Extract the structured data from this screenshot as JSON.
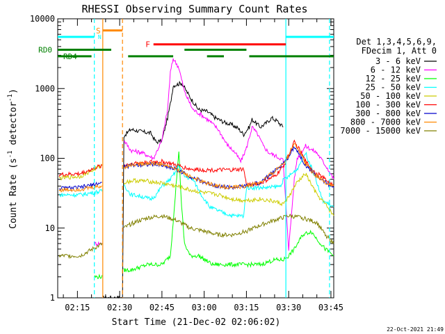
{
  "chart_data": {
    "type": "line",
    "title": "RHESSI Observing Summary Count Rates",
    "xlabel": "Start Time (21-Dec-02 02:06:02)",
    "ylabel": "Count Rate (s",
    "ylabel_exp1": "-1",
    "ylabel_mid": " detector",
    "ylabel_exp2": "-1",
    "ylabel_end": ")",
    "yscale": "log",
    "xlim": [
      8,
      106
    ],
    "ylim": [
      1,
      10000
    ],
    "x_unit": "minutes after 02:00 UT",
    "x_ticks": [
      {
        "value": 15,
        "label": "02:15"
      },
      {
        "value": 30,
        "label": "02:30"
      },
      {
        "value": 45,
        "label": "02:45"
      },
      {
        "value": 60,
        "label": "03:00"
      },
      {
        "value": 75,
        "label": "03:15"
      },
      {
        "value": 90,
        "label": "03:30"
      },
      {
        "value": 105,
        "label": "03:45"
      }
    ],
    "y_ticks": [
      {
        "value": 1,
        "label": "1"
      },
      {
        "value": 10,
        "label": "10"
      },
      {
        "value": 100,
        "label": "100"
      },
      {
        "value": 1000,
        "label": "1000"
      },
      {
        "value": 10000,
        "label": "10000"
      }
    ],
    "legend_title": [
      "Det 1,3,4,5,6,9,",
      "FDecim 1, Att 0"
    ],
    "legend_position": "right",
    "series": [
      {
        "name": "3 - 6 keV",
        "color": "#000000",
        "x": [
          8,
          20,
          24,
          31,
          31.5,
          34,
          38,
          41,
          43,
          45,
          47,
          48,
          49,
          52,
          55,
          58,
          61,
          64,
          67,
          70,
          72,
          74,
          76,
          77,
          80,
          82,
          84,
          86,
          88
        ],
        "values": [
          null,
          null,
          1,
          1,
          210,
          260,
          240,
          230,
          170,
          180,
          380,
          600,
          1100,
          1200,
          750,
          500,
          470,
          380,
          330,
          300,
          270,
          220,
          280,
          360,
          280,
          320,
          380,
          340,
          280
        ]
      },
      {
        "name": "6 - 12 keV",
        "color": "#ff00ff",
        "x": [
          8,
          20,
          21,
          24,
          31,
          31.5,
          34,
          38,
          42,
          45,
          47,
          48,
          49,
          51,
          53,
          56,
          59,
          62,
          65,
          68,
          71,
          73,
          75,
          77,
          79,
          81,
          83,
          85,
          87,
          88,
          90,
          92,
          93,
          96,
          100,
          104,
          106
        ],
        "values": [
          null,
          null,
          6,
          6,
          null,
          180,
          130,
          120,
          100,
          180,
          500,
          1700,
          2700,
          2000,
          900,
          500,
          420,
          340,
          260,
          160,
          120,
          90,
          140,
          280,
          220,
          150,
          120,
          110,
          100,
          95,
          5,
          50,
          100,
          150,
          120,
          70,
          50
        ]
      },
      {
        "name": "12 - 25 keV",
        "color": "#00ff00",
        "x": [
          8,
          20,
          21,
          24,
          31,
          31.5,
          34,
          40,
          45,
          48,
          50,
          51,
          52,
          53,
          55,
          58,
          63,
          70,
          75,
          80,
          85,
          88,
          90,
          92,
          95,
          98,
          100,
          103,
          106
        ],
        "values": [
          null,
          null,
          2,
          2,
          null,
          2.5,
          2.5,
          3,
          3,
          4,
          40,
          130,
          20,
          6,
          4,
          4,
          3,
          3,
          3,
          3,
          3.5,
          3.5,
          4,
          5,
          8,
          9,
          7,
          5,
          4
        ]
      },
      {
        "name": "25 - 50 keV",
        "color": "#00ffff",
        "x": [
          8,
          8.5,
          16,
          24,
          31,
          31.5,
          34,
          37,
          41,
          43,
          45,
          48,
          50,
          51,
          53,
          56,
          59,
          62,
          66,
          70,
          74,
          75,
          79,
          83,
          87,
          88,
          90,
          93,
          96,
          99,
          102,
          106
        ],
        "values": [
          null,
          30,
          30,
          34,
          null,
          42,
          30,
          29,
          26,
          30,
          40,
          50,
          65,
          80,
          55,
          50,
          30,
          20,
          17,
          15,
          15,
          38,
          38,
          38,
          40,
          48,
          55,
          70,
          120,
          60,
          25,
          20
        ]
      },
      {
        "name": "50 - 100 keV",
        "color": "#cccc00",
        "x": [
          8,
          8.5,
          16,
          24,
          31,
          31.5,
          35,
          40,
          45,
          50,
          55,
          60,
          65,
          70,
          74,
          75,
          80,
          85,
          88,
          90,
          93,
          96,
          100,
          103,
          106
        ],
        "values": [
          null,
          52,
          55,
          80,
          null,
          45,
          48,
          47,
          44,
          40,
          35,
          32,
          30,
          26,
          25,
          25,
          26,
          24,
          22,
          28,
          45,
          60,
          30,
          22,
          15
        ]
      },
      {
        "name": "100 - 300 keV",
        "color": "#ff0000",
        "x": [
          8,
          8.5,
          16,
          24,
          31,
          31.5,
          35,
          40,
          45,
          50,
          55,
          60,
          65,
          70,
          74,
          75,
          80,
          85,
          88,
          90,
          92,
          94,
          96,
          99,
          103,
          106
        ],
        "values": [
          null,
          58,
          60,
          80,
          null,
          80,
          85,
          88,
          90,
          80,
          70,
          68,
          68,
          68,
          70,
          42,
          44,
          55,
          75,
          110,
          170,
          130,
          90,
          65,
          50,
          40
        ]
      },
      {
        "name": "300 - 800 keV",
        "color": "#0000cc",
        "x": [
          8,
          8.5,
          16,
          24,
          31,
          31.5,
          35,
          40,
          45,
          50,
          55,
          60,
          65,
          70,
          75,
          80,
          85,
          88,
          90,
          92,
          94,
          96,
          99,
          103,
          106
        ],
        "values": [
          null,
          37,
          38,
          45,
          null,
          75,
          80,
          82,
          80,
          70,
          55,
          45,
          40,
          38,
          40,
          45,
          65,
          85,
          105,
          150,
          110,
          80,
          60,
          45,
          38
        ]
      },
      {
        "name": "800 - 7000 keV",
        "color": "#ff8800",
        "x": [
          8,
          8.5,
          16,
          24,
          31,
          31.5,
          35,
          40,
          45,
          50,
          55,
          60,
          65,
          70,
          75,
          80,
          85,
          88,
          90,
          92,
          94,
          96,
          99,
          103,
          106
        ],
        "values": [
          null,
          35,
          36,
          40,
          null,
          75,
          82,
          85,
          82,
          70,
          55,
          45,
          40,
          38,
          40,
          45,
          65,
          85,
          110,
          170,
          120,
          85,
          60,
          45,
          40
        ]
      },
      {
        "name": "7000 - 15000 keV",
        "color": "#808000",
        "x": [
          8,
          8.5,
          16,
          24,
          31,
          31.5,
          35,
          40,
          45,
          50,
          55,
          60,
          65,
          70,
          75,
          80,
          85,
          90,
          95,
          100,
          103,
          106
        ],
        "values": [
          null,
          4,
          4,
          6,
          null,
          10,
          12,
          14,
          15,
          13,
          10,
          9,
          8,
          8,
          9,
          11,
          13,
          15,
          14,
          12,
          8,
          6
        ]
      }
    ],
    "annotations": {
      "flags": [
        {
          "label": "",
          "color": "#00ffff",
          "y": 5500,
          "segments": [
            [
              8,
              21
            ],
            [
              89,
              106
            ]
          ]
        },
        {
          "label": "S",
          "color": "#ff8800",
          "y": 6800,
          "segments": [
            [
              24,
              31
            ]
          ]
        },
        {
          "label": "N",
          "color": "#00ffff",
          "y": 5500,
          "segments": []
        },
        {
          "label": "F",
          "color": "#ff0000",
          "y": 4300,
          "segments": [
            [
              42,
              89
            ]
          ]
        },
        {
          "label": "RD0",
          "color": "#008000",
          "y": 3600,
          "segments": [
            [
              8,
              27
            ]
          ]
        },
        {
          "label": "RD4",
          "color": "#008000",
          "y": 2900,
          "segments": [
            [
              8,
              20
            ],
            [
              33,
              49
            ],
            [
              61,
              67
            ],
            [
              76,
              106
            ]
          ]
        }
      ],
      "upper_segments": [
        {
          "color": "#008000",
          "y": 3600,
          "segments": [
            [
              53,
              75
            ]
          ]
        }
      ],
      "vlines": [
        {
          "x": 21,
          "color": "#00ffff",
          "style": "dashed"
        },
        {
          "x": 24,
          "color": "#ff8800",
          "style": "solid"
        },
        {
          "x": 31,
          "color": "#ff8800",
          "style": "dashed"
        },
        {
          "x": 89,
          "color": "#00ffff",
          "style": "solid"
        },
        {
          "x": 104.5,
          "color": "#00ffff",
          "style": "dashed"
        }
      ]
    },
    "footer_date": "22-Oct-2021 21:49"
  }
}
